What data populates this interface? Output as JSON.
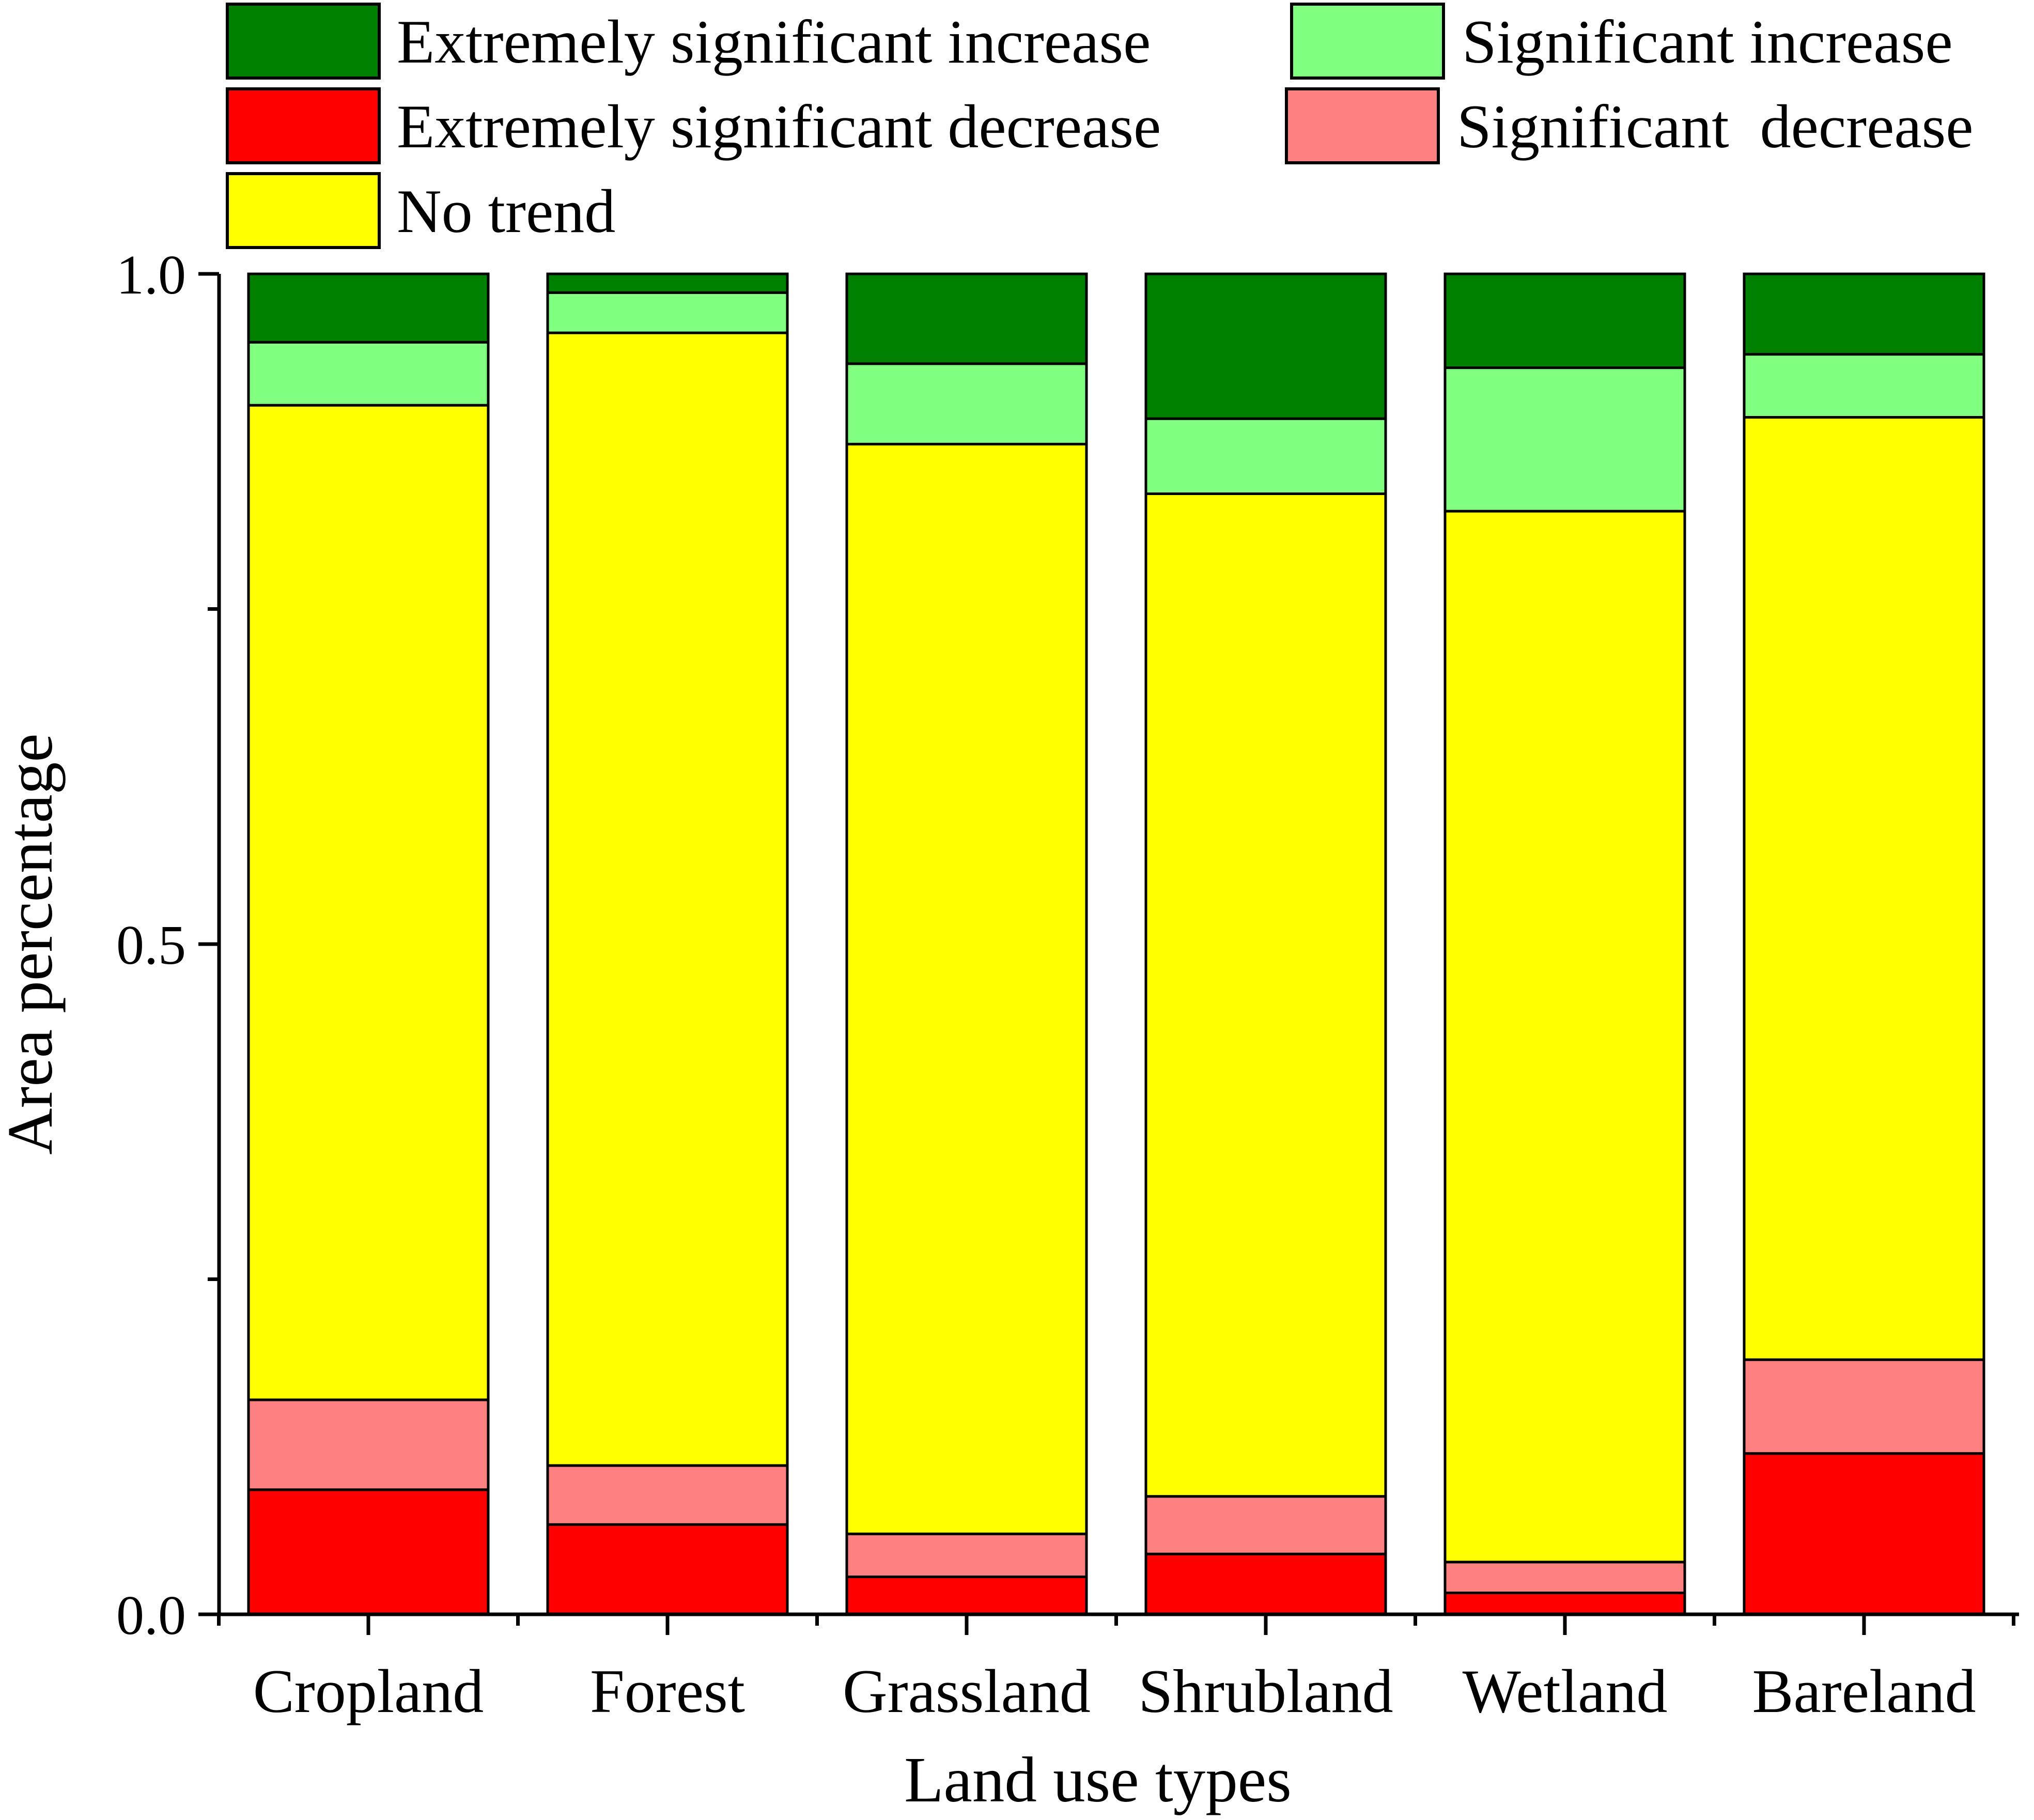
{
  "chart_data": {
    "type": "bar",
    "stacked": true,
    "title": "",
    "xlabel": "Land use types",
    "ylabel": "Area percentage",
    "ylim": [
      0,
      1.0
    ],
    "yticks": [
      {
        "value": 0.0,
        "label": "0.0"
      },
      {
        "value": 0.5,
        "label": "0.5"
      },
      {
        "value": 1.0,
        "label": "1.0"
      }
    ],
    "categories": [
      "Cropland",
      "Forest",
      "Grassland",
      "Shrubland",
      "Wetland",
      "Bareland"
    ],
    "legend_position": "top",
    "series": [
      {
        "name": "Extremely significant decrease",
        "color": "#ff0000",
        "values": [
          0.093,
          0.067,
          0.028,
          0.045,
          0.016,
          0.12
        ]
      },
      {
        "name": "Significant  decrease",
        "color": "#ff8080",
        "values": [
          0.067,
          0.044,
          0.032,
          0.043,
          0.023,
          0.07
        ]
      },
      {
        "name": "No trend",
        "color": "#ffff00",
        "values": [
          0.742,
          0.845,
          0.813,
          0.748,
          0.784,
          0.703
        ]
      },
      {
        "name": "Significant increase",
        "color": "#80ff80",
        "values": [
          0.047,
          0.03,
          0.06,
          0.056,
          0.107,
          0.047
        ]
      },
      {
        "name": "Extremely significant increase",
        "color": "#008000",
        "values": [
          0.051,
          0.014,
          0.067,
          0.108,
          0.07,
          0.06
        ]
      }
    ]
  }
}
